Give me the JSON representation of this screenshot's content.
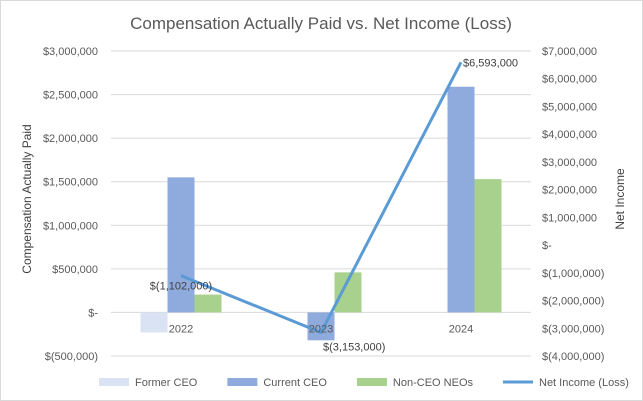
{
  "chart_data": {
    "type": "bar",
    "title": "Compensation Actually Paid vs. Net Income (Loss)",
    "ylabel_left": "Compensation Actually Paid",
    "ylabel_right": "Net Income",
    "categories": [
      "2022",
      "2023",
      "2024"
    ],
    "ylim_left": [
      -500000,
      3000000
    ],
    "ylim_right": [
      -4000000,
      7000000
    ],
    "yticks_left": [
      "$(500,000)",
      "$-",
      "$500,000",
      "$1,000,000",
      "$1,500,000",
      "$2,000,000",
      "$2,500,000",
      "$3,000,000"
    ],
    "yticks_right": [
      "$(4,000,000)",
      "$(3,000,000)",
      "$(2,000,000)",
      "$(1,000,000)",
      "$-",
      "$1,000,000",
      "$2,000,000",
      "$3,000,000",
      "$4,000,000",
      "$5,000,000",
      "$6,000,000",
      "$7,000,000"
    ],
    "grid": true,
    "legend_position": "bottom",
    "series": [
      {
        "name": "Former CEO",
        "type": "bar",
        "axis": "left",
        "color": "#dae3f3",
        "values": [
          -230000,
          0,
          0
        ]
      },
      {
        "name": "Current CEO",
        "type": "bar",
        "axis": "left",
        "color": "#8faadc",
        "values": [
          1550000,
          -320000,
          2590000
        ]
      },
      {
        "name": "Non-CEO NEOs",
        "type": "bar",
        "axis": "left",
        "color": "#a9d18e",
        "values": [
          205000,
          460000,
          1530000
        ]
      },
      {
        "name": "Net Income (Loss)",
        "type": "line",
        "axis": "right",
        "color": "#5b9bd5",
        "values": [
          -1102000,
          -3153000,
          6593000
        ],
        "labels": [
          "$(1,102,000)",
          "$(3,153,000)",
          "$6,593,000"
        ]
      }
    ]
  }
}
